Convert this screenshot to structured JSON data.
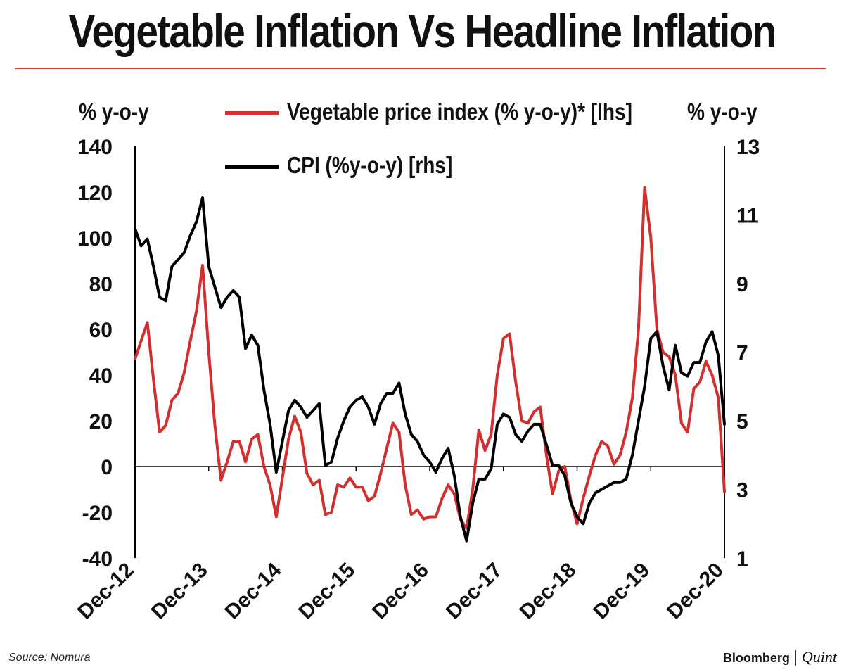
{
  "title": "Vegetable Inflation Vs Headline Inflation",
  "footer": {
    "source": "Source: Nomura",
    "brand_primary": "Bloomberg",
    "brand_secondary": "Quint"
  },
  "colors": {
    "vegetable": "#d32f2f",
    "cpi": "#000000",
    "rule": "#d33a2c"
  },
  "chart_data": {
    "type": "line",
    "title": "Vegetable Inflation Vs Headline Inflation",
    "ylabel_left": "% y-o-y",
    "ylabel_right": "% y-o-y",
    "ylim_left": [
      -40,
      140
    ],
    "ylim_right": [
      1,
      13
    ],
    "y_ticks_left": [
      "140",
      "120",
      "100",
      "80",
      "60",
      "40",
      "20",
      "0",
      "-20",
      "-40"
    ],
    "y_ticks_right": [
      "13",
      "11",
      "9",
      "7",
      "5",
      "3",
      "1"
    ],
    "y_tick_values_left": [
      140,
      120,
      100,
      80,
      60,
      40,
      20,
      0,
      -20,
      -40
    ],
    "y_tick_values_right": [
      13,
      11,
      9,
      7,
      5,
      3,
      1
    ],
    "x_ticks": [
      "Dec-12",
      "Dec-13",
      "Dec-14",
      "Dec-15",
      "Dec-16",
      "Dec-17",
      "Dec-18",
      "Dec-19",
      "Dec-20"
    ],
    "x_start": "Dec-12",
    "x_end": "Dec-20",
    "grid": false,
    "legend": "top",
    "series": [
      {
        "name": "Vegetable price index (% y-o-y)* [lhs]",
        "axis": "left",
        "color": "#d32f2f",
        "values": [
          47,
          55,
          63,
          38,
          15,
          18,
          29,
          32,
          41,
          55,
          68,
          88,
          50,
          18,
          -6,
          2,
          11,
          11,
          2,
          12,
          14,
          0,
          -8,
          -22,
          -5,
          12,
          22,
          15,
          -3,
          -8,
          -6,
          -21,
          -20,
          -8,
          -9,
          -5,
          -9,
          -9,
          -15,
          -13,
          -3,
          8,
          19,
          15,
          -8,
          -21,
          -19,
          -23,
          -22,
          -22,
          -14,
          -8,
          -12,
          -23,
          -27,
          -10,
          16,
          7,
          14,
          40,
          56,
          58,
          37,
          20,
          19,
          24,
          26,
          5,
          -12,
          -2,
          0,
          -15,
          -25,
          -14,
          -4,
          5,
          11,
          9,
          1,
          5,
          15,
          30,
          60,
          122,
          100,
          60,
          50,
          48,
          40,
          19,
          15,
          34,
          37,
          46,
          40,
          30,
          -11
        ]
      },
      {
        "name": "CPI (%y-o-y) [rhs]",
        "axis": "right",
        "color": "#000000",
        "values": [
          10.6,
          10.1,
          10.3,
          9.5,
          8.6,
          8.5,
          9.5,
          9.7,
          9.9,
          10.4,
          10.8,
          11.5,
          9.5,
          8.9,
          8.3,
          8.6,
          8.8,
          8.6,
          7.1,
          7.5,
          7.2,
          5.9,
          4.9,
          3.5,
          4.4,
          5.3,
          5.6,
          5.4,
          5.1,
          5.3,
          5.5,
          3.7,
          3.8,
          4.5,
          5.0,
          5.4,
          5.6,
          5.7,
          5.4,
          4.9,
          5.5,
          5.8,
          5.8,
          6.1,
          5.2,
          4.6,
          4.4,
          4.0,
          3.8,
          3.5,
          3.9,
          4.2,
          3.4,
          2.2,
          1.5,
          2.6,
          3.3,
          3.3,
          3.6,
          4.9,
          5.2,
          5.1,
          4.6,
          4.4,
          4.7,
          4.9,
          4.9,
          4.3,
          3.7,
          3.7,
          3.4,
          2.6,
          2.2,
          2.0,
          2.6,
          2.9,
          3.0,
          3.1,
          3.2,
          3.2,
          3.3,
          4.0,
          5.0,
          6.0,
          7.4,
          7.6,
          6.6,
          5.9,
          7.2,
          6.4,
          6.3,
          6.7,
          6.7,
          7.3,
          7.6,
          6.9,
          4.9
        ]
      }
    ]
  }
}
